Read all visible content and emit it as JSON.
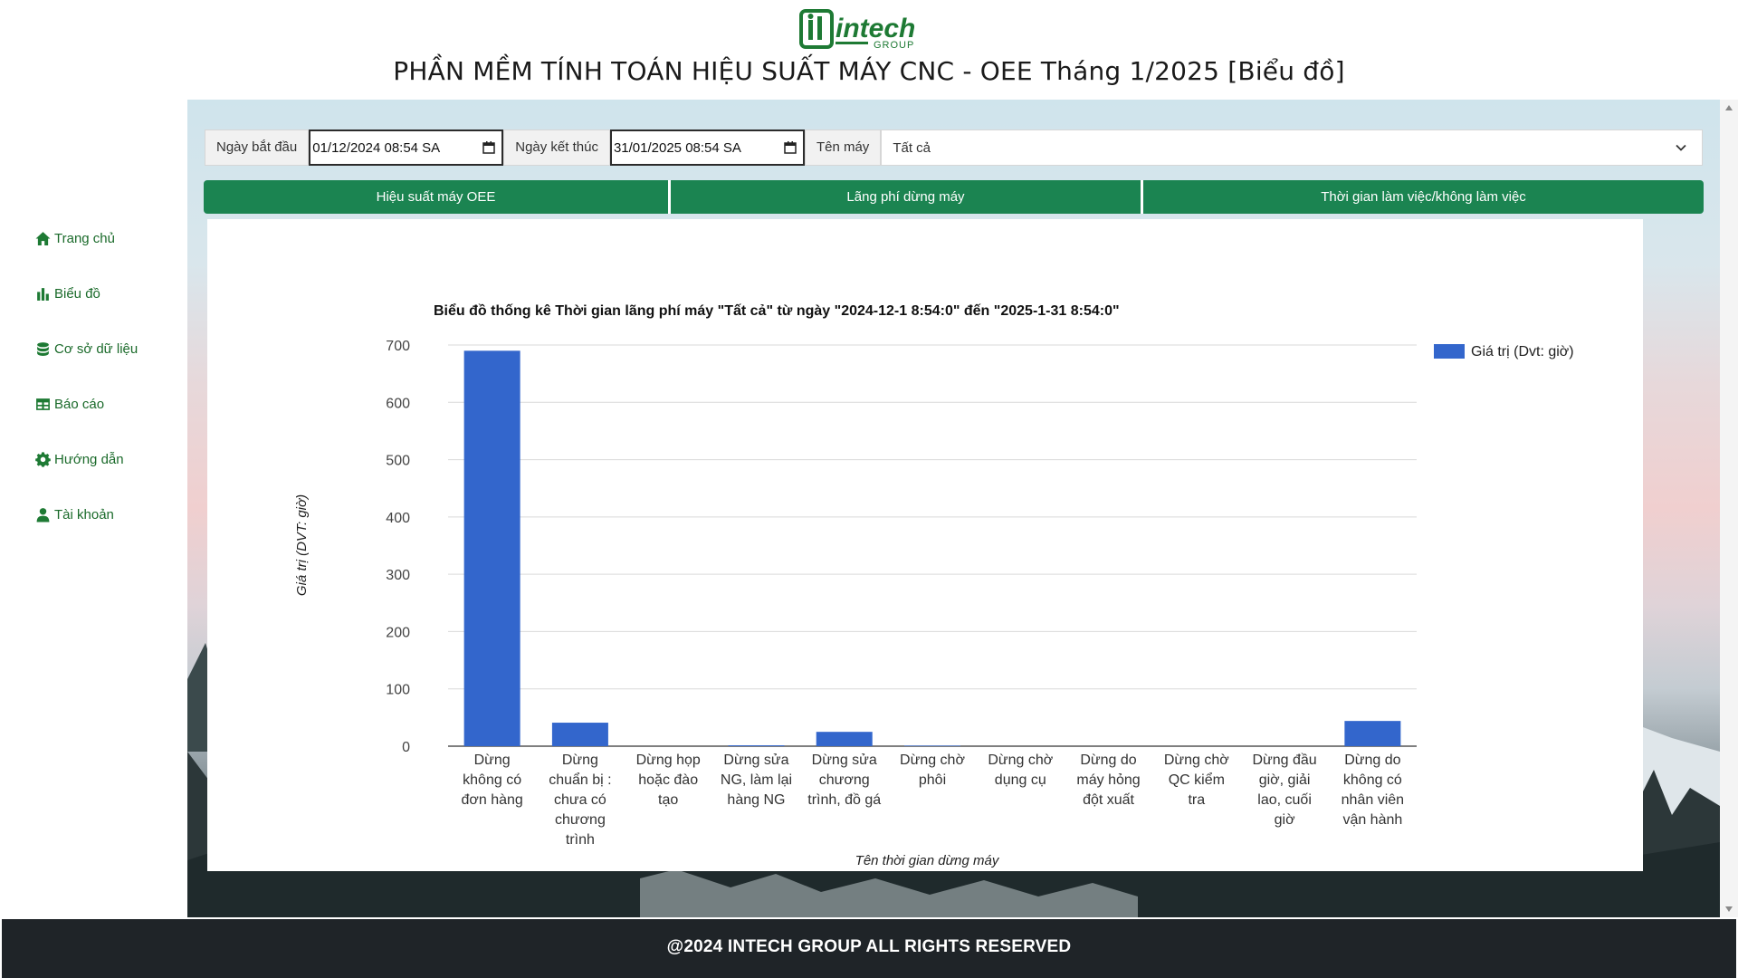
{
  "brand": {
    "logo_text": "intech",
    "logo_sub": "GROUP",
    "green": "#1e7a34",
    "tab_green": "#1b8451"
  },
  "header": {
    "title": "PHẦN MỀM TÍNH TOÁN HIỆU SUẤT MÁY CNC - OEE Tháng 1/2025 [Biểu đồ]"
  },
  "sidebar": {
    "items": [
      {
        "label": "Trang chủ",
        "icon": "home-icon"
      },
      {
        "label": "Biểu đồ",
        "icon": "bar-chart-icon"
      },
      {
        "label": "Cơ sở dữ liệu",
        "icon": "database-icon"
      },
      {
        "label": "Báo cáo",
        "icon": "table-icon"
      },
      {
        "label": "Hướng dẫn",
        "icon": "gear-icon"
      },
      {
        "label": "Tài khoản",
        "icon": "user-icon"
      }
    ]
  },
  "filters": {
    "start_label": "Ngày bắt đầu",
    "start_value": "01/12/2024 08:54  SA",
    "end_label": "Ngày kết thúc",
    "end_value": "31/01/2025 08:54  SA",
    "machine_label": "Tên máy",
    "machine_value": "Tất cả"
  },
  "tabs": [
    {
      "label": "Hiệu suất máy OEE"
    },
    {
      "label": "Lãng phí dừng máy"
    },
    {
      "label": "Thời gian làm việc/không làm việc"
    }
  ],
  "chart_data": {
    "type": "bar",
    "title": "Biểu đồ thống kê Thời gian lãng phí máy \"Tất cả\" từ ngày \"2024-12-1 8:54:0\" đến \"2025-1-31 8:54:0\"",
    "xlabel": "Tên thời gian dừng máy",
    "ylabel": "Giá trị (DVT: giờ)",
    "ylim": [
      0,
      700
    ],
    "yticks": [
      0,
      100,
      200,
      300,
      400,
      500,
      600,
      700
    ],
    "grid": true,
    "legend_position": "top-right",
    "bar_color": "#3366cc",
    "categories": [
      [
        "Dừng",
        "không có",
        "đơn hàng"
      ],
      [
        "Dừng",
        "chuẩn bị :",
        "chưa có",
        "chương",
        "trình"
      ],
      [
        "Dừng họp",
        "hoặc đào",
        "tạo"
      ],
      [
        "Dừng sửa",
        "NG, làm lại",
        "hàng NG"
      ],
      [
        "Dừng sửa",
        "chương",
        "trình, đồ gá"
      ],
      [
        "Dừng chờ",
        "phôi"
      ],
      [
        "Dừng chờ",
        "dụng cụ"
      ],
      [
        "Dừng do",
        "máy hỏng",
        "đột xuất"
      ],
      [
        "Dừng chờ",
        "QC kiểm",
        "tra"
      ],
      [
        "Dừng đầu",
        "giờ, giải",
        "lao, cuối",
        "giờ"
      ],
      [
        "Dừng do",
        "không có",
        "nhân viên",
        "vận hành"
      ]
    ],
    "series": [
      {
        "name": "Giá trị (Dvt: giờ)",
        "values": [
          690,
          41,
          0,
          1.5,
          25,
          1,
          0,
          0,
          0,
          0,
          44
        ]
      }
    ]
  },
  "footer": {
    "text": "@2024 INTECH GROUP ALL RIGHTS RESERVED"
  }
}
